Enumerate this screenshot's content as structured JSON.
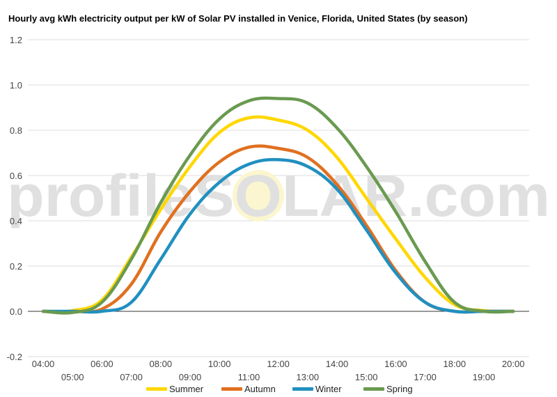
{
  "chart_data": {
    "type": "line",
    "title": "Hourly avg kWh electricity output per kW of Solar PV installed in Venice, Florida, United States (by season)",
    "xlabel": "",
    "ylabel": "",
    "ylim": [
      -0.2,
      1.2
    ],
    "yticks": [
      "-0.2",
      "0.0",
      "0.2",
      "0.4",
      "0.6",
      "0.8",
      "1.0",
      "1.2"
    ],
    "categories": [
      "04:00",
      "05:00",
      "06:00",
      "07:00",
      "08:00",
      "09:00",
      "10:00",
      "11:00",
      "12:00",
      "13:00",
      "14:00",
      "15:00",
      "16:00",
      "17:00",
      "18:00",
      "19:00",
      "20:00"
    ],
    "grid": true,
    "legend_position": "bottom",
    "watermark": "profileSOLAR.com",
    "series": [
      {
        "name": "Summer",
        "color": "#FFD700",
        "values": [
          0,
          0.003,
          0.05,
          0.24,
          0.45,
          0.64,
          0.79,
          0.855,
          0.845,
          0.8,
          0.68,
          0.5,
          0.32,
          0.15,
          0.03,
          0.003,
          0
        ]
      },
      {
        "name": "Autumn",
        "color": "#E07020",
        "values": [
          0,
          0,
          0.01,
          0.12,
          0.35,
          0.53,
          0.66,
          0.725,
          0.72,
          0.68,
          0.56,
          0.38,
          0.18,
          0.04,
          0,
          0,
          0
        ]
      },
      {
        "name": "Winter",
        "color": "#2090C0",
        "values": [
          0,
          0,
          0,
          0.04,
          0.23,
          0.43,
          0.57,
          0.65,
          0.67,
          0.64,
          0.54,
          0.36,
          0.17,
          0.04,
          0,
          0,
          0
        ]
      },
      {
        "name": "Spring",
        "color": "#6A9A50",
        "values": [
          0,
          -0.005,
          0.04,
          0.23,
          0.48,
          0.69,
          0.85,
          0.93,
          0.94,
          0.92,
          0.81,
          0.64,
          0.44,
          0.22,
          0.04,
          0,
          0
        ]
      }
    ]
  }
}
